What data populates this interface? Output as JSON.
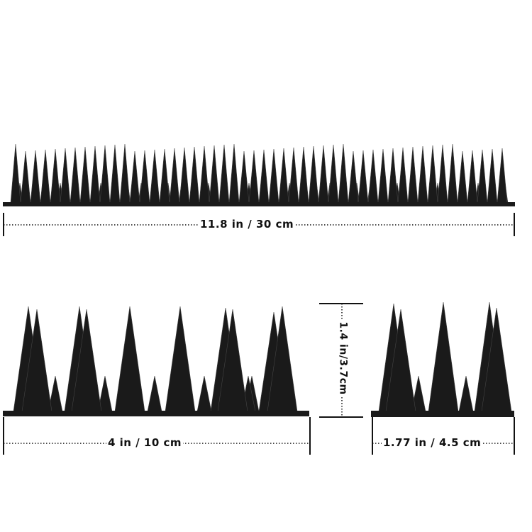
{
  "dimensions": {
    "length": "11.8 in / 30 cm",
    "section_width": "4 in / 10 cm",
    "height": "1.4 in/3.7cm",
    "depth": "1.77 in / 4.5 cm"
  },
  "colors": {
    "spike": "#1a1a1a",
    "line": "#111111",
    "background": "#ffffff"
  }
}
